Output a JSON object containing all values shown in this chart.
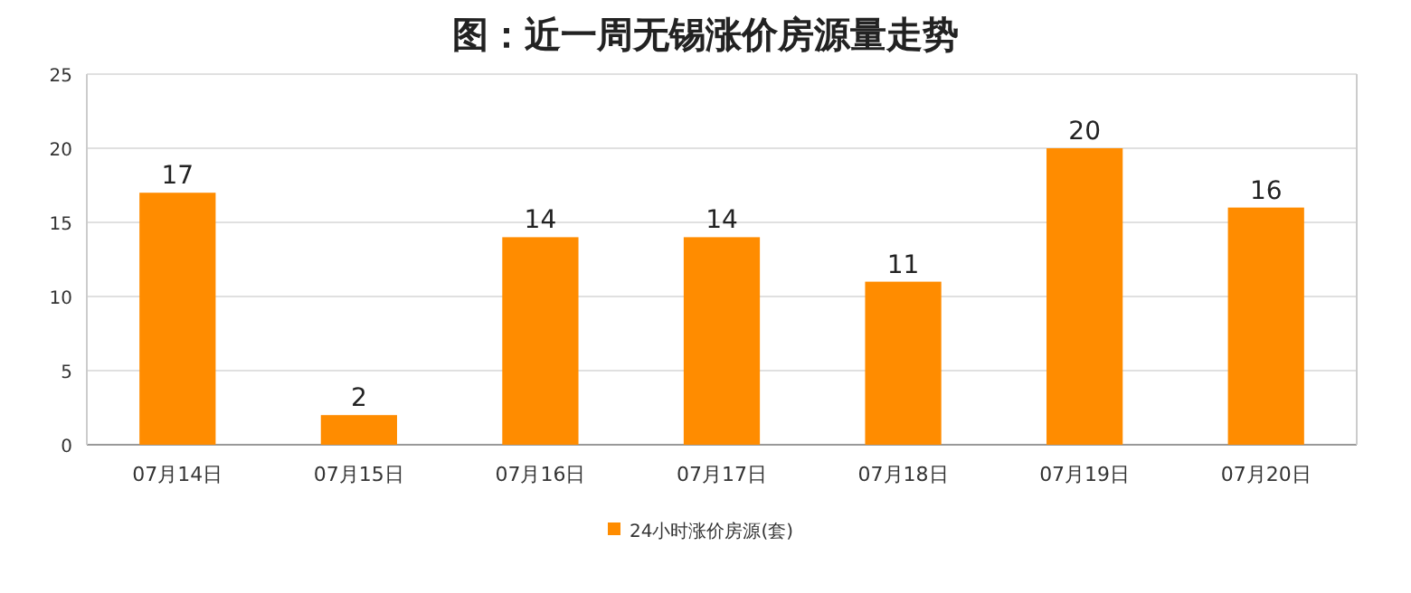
{
  "chart_data": {
    "type": "bar",
    "title": "图：近一周无锡涨价房源量走势",
    "categories": [
      "07月14日",
      "07月15日",
      "07月16日",
      "07月17日",
      "07月18日",
      "07月19日",
      "07月20日"
    ],
    "series": [
      {
        "name": "24小时涨价房源(套)",
        "color": "#ff8c00",
        "values": [
          17,
          2,
          14,
          14,
          11,
          20,
          16
        ]
      }
    ],
    "ylim": [
      0,
      25
    ],
    "yticks": [
      0,
      5,
      10,
      15,
      20,
      25
    ],
    "grid": "y",
    "legend": "bottom",
    "data_labels": true
  }
}
